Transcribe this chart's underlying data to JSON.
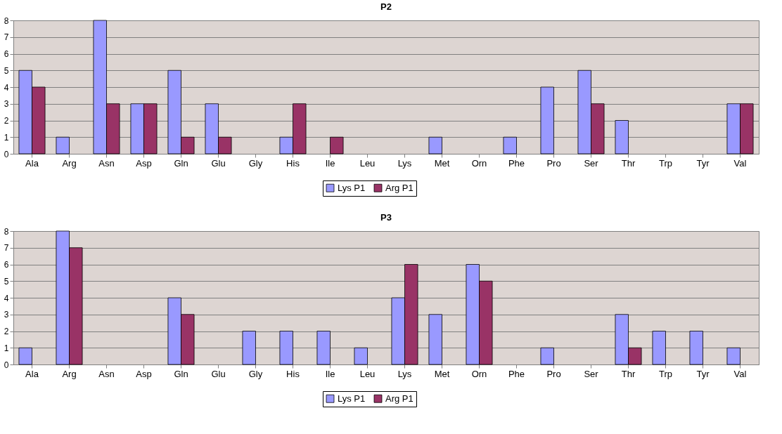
{
  "chart_data": [
    {
      "type": "bar",
      "title": "P2",
      "categories": [
        "Ala",
        "Arg",
        "Asn",
        "Asp",
        "Gln",
        "Glu",
        "Gly",
        "His",
        "Ile",
        "Leu",
        "Lys",
        "Met",
        "Orn",
        "Phe",
        "Pro",
        "Ser",
        "Thr",
        "Trp",
        "Tyr",
        "Val"
      ],
      "series": [
        {
          "name": "Lys P1",
          "color": "#9999ff",
          "values": [
            5,
            1,
            8,
            3,
            5,
            3,
            0,
            1,
            0,
            0,
            0,
            1,
            0,
            1,
            4,
            5,
            2,
            0,
            0,
            3
          ]
        },
        {
          "name": "Arg P1",
          "color": "#993366",
          "values": [
            4,
            0,
            3,
            3,
            1,
            1,
            0,
            3,
            1,
            0,
            0,
            0,
            0,
            0,
            0,
            3,
            0,
            0,
            0,
            3
          ]
        }
      ],
      "ylim": [
        0,
        8
      ],
      "yticks": [
        0,
        1,
        2,
        3,
        4,
        5,
        6,
        7,
        8
      ],
      "grid": "y",
      "legend": "bottom"
    },
    {
      "type": "bar",
      "title": "P3",
      "categories": [
        "Ala",
        "Arg",
        "Asn",
        "Asp",
        "Gln",
        "Glu",
        "Gly",
        "His",
        "Ile",
        "Leu",
        "Lys",
        "Met",
        "Orn",
        "Phe",
        "Pro",
        "Ser",
        "Thr",
        "Trp",
        "Tyr",
        "Val"
      ],
      "series": [
        {
          "name": "Lys P1",
          "color": "#9999ff",
          "values": [
            1,
            8,
            0,
            0,
            4,
            0,
            2,
            2,
            2,
            1,
            4,
            3,
            6,
            0,
            1,
            0,
            3,
            2,
            2,
            1
          ]
        },
        {
          "name": "Arg P1",
          "color": "#993366",
          "values": [
            0,
            7,
            0,
            0,
            3,
            0,
            0,
            0,
            0,
            0,
            6,
            0,
            5,
            0,
            0,
            0,
            1,
            0,
            0,
            0
          ]
        }
      ],
      "ylim": [
        0,
        8
      ],
      "yticks": [
        0,
        1,
        2,
        3,
        4,
        5,
        6,
        7,
        8
      ],
      "grid": "y",
      "legend": "bottom"
    }
  ]
}
